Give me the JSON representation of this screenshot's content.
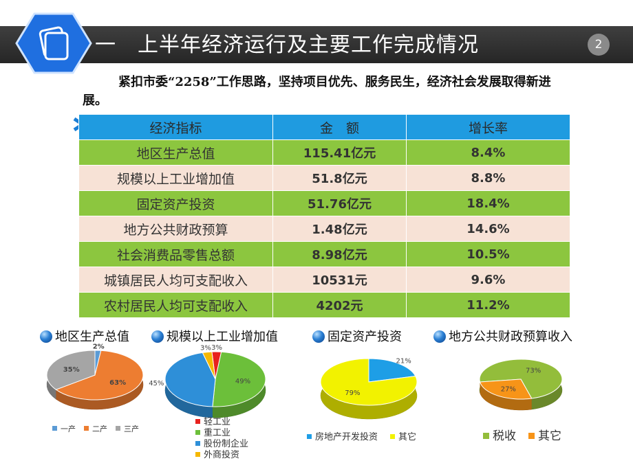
{
  "header": {
    "title": "一　上半年经济运行及主要工作完成情况",
    "page_number": "2"
  },
  "intro": "紧扣市委“2258”工作思路，坚持项目优先、服务民生，经济社会发展取得新进展。",
  "table": {
    "columns": [
      "经济指标",
      "金　额",
      "增长率"
    ],
    "rows": [
      [
        "地区生产总值",
        "115.41亿元",
        "8.4%"
      ],
      [
        "规模以上工业增加值",
        "51.8亿元",
        "8.8%"
      ],
      [
        "固定资产投资",
        "51.76亿元",
        "18.4%"
      ],
      [
        "地方公共财政预算",
        "1.48亿元",
        "14.6%"
      ],
      [
        "社会消费品零售总额",
        "8.98亿元",
        "10.5%"
      ],
      [
        "城镇居民人均可支配收入",
        "10531元",
        "9.6%"
      ],
      [
        "农村居民人均可支配收入",
        "4202元",
        "11.2%"
      ]
    ]
  },
  "chart_data": [
    {
      "type": "pie",
      "title": "地区生产总值",
      "categories": [
        "一产",
        "二产",
        "三产"
      ],
      "values": [
        2,
        63,
        35
      ],
      "labels": [
        "2%",
        "63%",
        "35%"
      ],
      "colors": [
        "#5b9bd5",
        "#ed7d31",
        "#a5a5a5"
      ]
    },
    {
      "type": "pie",
      "title": "规模以上工业增加值",
      "categories": [
        "轻工业",
        "重工业",
        "股份制企业",
        "外商投资"
      ],
      "values": [
        3,
        49,
        45,
        3
      ],
      "labels": [
        "3%",
        "49%",
        "45%",
        "3%"
      ],
      "colors": [
        "#e8211d",
        "#6cbf3a",
        "#2e8fd8",
        "#f5b800"
      ]
    },
    {
      "type": "pie",
      "title": "固定资产投资",
      "categories": [
        "房地产开发投资",
        "其它"
      ],
      "values": [
        21,
        79
      ],
      "labels": [
        "21%",
        "79%"
      ],
      "colors": [
        "#1e9ee6",
        "#f2f200"
      ]
    },
    {
      "type": "pie",
      "title": "地方公共财政预算收入",
      "categories": [
        "税收",
        "其它"
      ],
      "values": [
        73,
        27
      ],
      "labels": [
        "73%",
        "27%"
      ],
      "colors": [
        "#93bd3b",
        "#f79418"
      ]
    }
  ]
}
